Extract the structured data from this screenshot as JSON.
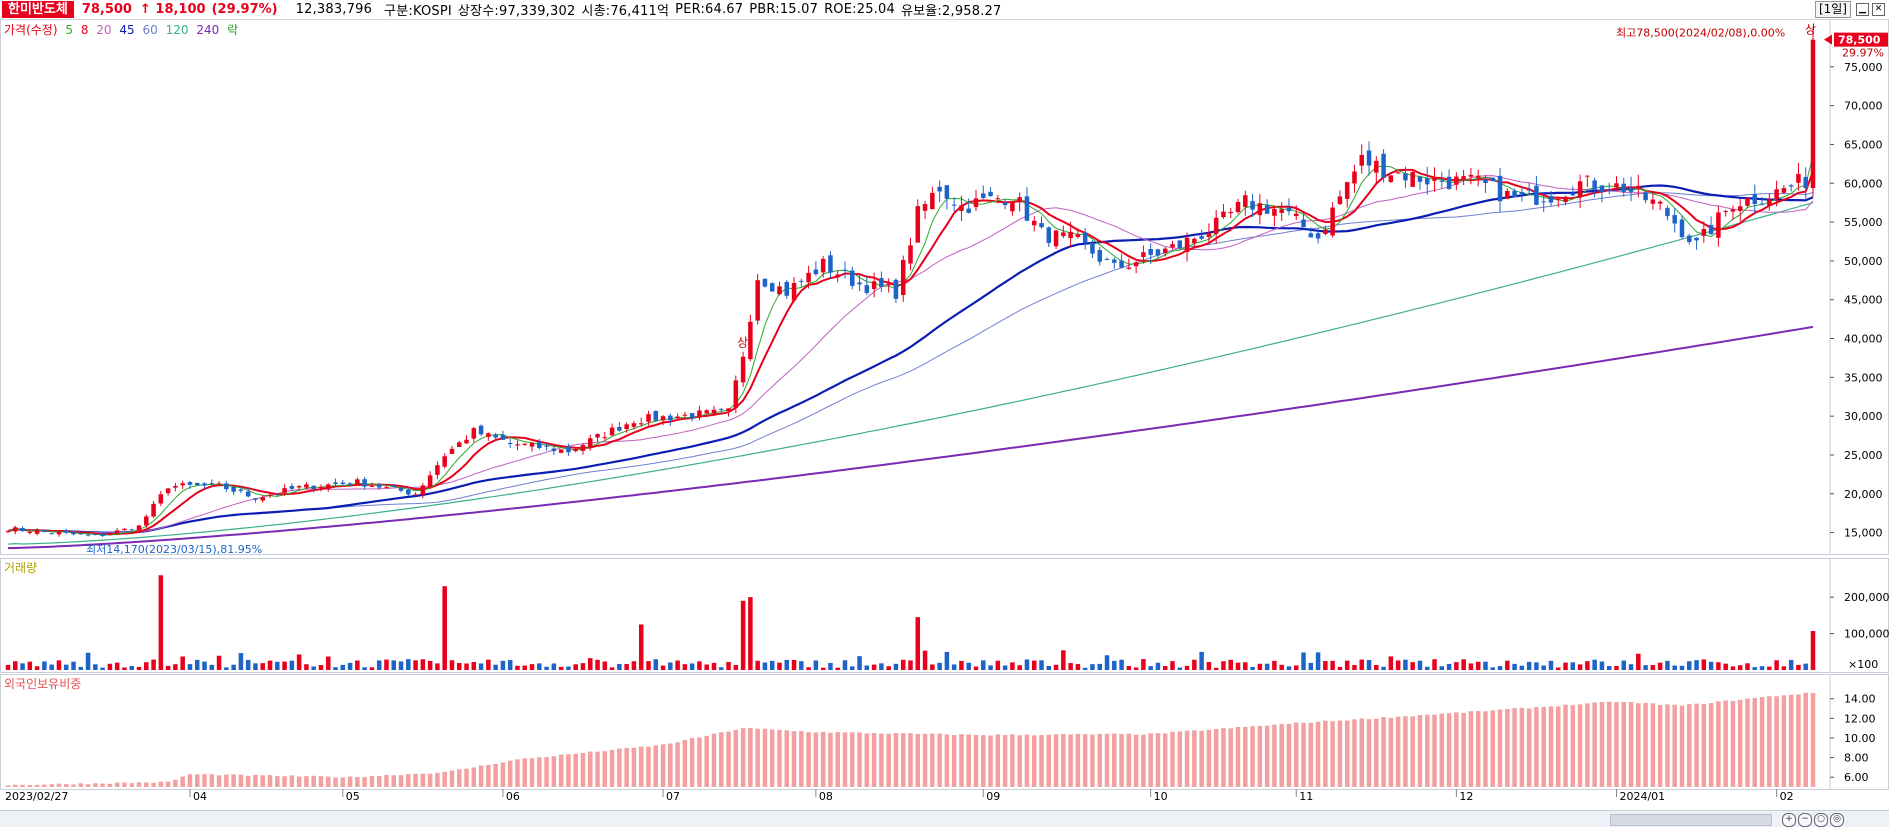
{
  "info": {
    "name": "한미반도체",
    "price": "78,500",
    "change": "↑ 18,100",
    "change_pct": "(29.97%)",
    "volume": "12,383,796",
    "market": "구분:KOSPI",
    "shares": "상장수:97,339,302",
    "market_cap": "시총:76,411억",
    "per": "PER:64.67",
    "pbr": "PBR:15.07",
    "roe": "ROE:25.04",
    "float": "유보율:2,958.27",
    "period": "[1일]"
  },
  "price_panel": {
    "legend_title": "가격(수정)",
    "ma_labels": [
      "5",
      "8",
      "20",
      "45",
      "60",
      "120",
      "240"
    ],
    "ma_colors": [
      "#2aa82a",
      "#e8001c",
      "#c060c0",
      "#0a1eb4",
      "#7080d0",
      "#3cb08c",
      "#7a2ab4"
    ],
    "legend_lock": "락",
    "high_label": "최고78,500(2024/02/08),0.00%",
    "limit_up_mark": "상",
    "low_label": "최저14,170(2023/03/15),81.95%",
    "current_price_tag": "78,500",
    "current_pct_tag": "29.97%"
  },
  "volume_panel": {
    "legend_title": "거래량",
    "unit_label": "×100"
  },
  "foreign_panel": {
    "legend_title": "외국인보유비중"
  },
  "x_axis_labels": [
    "2023/02/27",
    "04",
    "05",
    "06",
    "07",
    "08",
    "09",
    "10",
    "11",
    "12",
    "2024/01",
    "02"
  ],
  "colors": {
    "up": "#e8001c",
    "down": "#1e64c8",
    "foreign_bar": "#f4a0a0",
    "limit_up": "#e8001c"
  },
  "chart_data": [
    {
      "type": "candlestick",
      "title": "한미반도체",
      "ylim": [
        12500,
        80000
      ],
      "y_ticks": [
        15000,
        20000,
        25000,
        30000,
        35000,
        40000,
        45000,
        50000,
        55000,
        60000,
        65000,
        70000,
        75000
      ],
      "y_tick_labels": [
        "15,000",
        "20,000",
        "25,000",
        "30,000",
        "35,000",
        "40,000",
        "45,000",
        "50,000",
        "55,000",
        "60,000",
        "65,000",
        "70,000",
        "75,000"
      ],
      "x_period": [
        "2023/02/27",
        "2024/02/08"
      ],
      "close_anchors": [
        [
          "2023/02/27",
          15500
        ],
        [
          "2023/03/15",
          14500
        ],
        [
          "2023/03/23",
          15800
        ],
        [
          "2023/03/29",
          21000
        ],
        [
          "2023/04/07",
          21000
        ],
        [
          "2023/04/14",
          19500
        ],
        [
          "2023/04/24",
          20800
        ],
        [
          "2023/05/04",
          21500
        ],
        [
          "2023/05/16",
          20000
        ],
        [
          "2023/05/22",
          25000
        ],
        [
          "2023/05/26",
          28000
        ],
        [
          "2023/06/02",
          26500
        ],
        [
          "2023/06/14",
          25500
        ],
        [
          "2023/06/27",
          29500
        ],
        [
          "2023/07/05",
          30000
        ],
        [
          "2023/07/14",
          30500
        ],
        [
          "2023/07/18",
          38000
        ],
        [
          "2023/07/20",
          48000
        ],
        [
          "2023/07/26",
          46000
        ],
        [
          "2023/08/02",
          49500
        ],
        [
          "2023/08/09",
          47000
        ],
        [
          "2023/08/16",
          46000
        ],
        [
          "2023/08/21",
          56000
        ],
        [
          "2023/08/24",
          59500
        ],
        [
          "2023/08/29",
          57000
        ],
        [
          "2023/09/07",
          58500
        ],
        [
          "2023/09/13",
          53500
        ],
        [
          "2023/09/20",
          52500
        ],
        [
          "2023/09/27",
          49000
        ],
        [
          "2023/10/10",
          52000
        ],
        [
          "2023/10/17",
          54500
        ],
        [
          "2023/10/23",
          57500
        ],
        [
          "2023/10/30",
          56500
        ],
        [
          "2023/11/06",
          53000
        ],
        [
          "2023/11/10",
          60000
        ],
        [
          "2023/11/14",
          63000
        ],
        [
          "2023/11/20",
          61500
        ],
        [
          "2023/11/27",
          60500
        ],
        [
          "2023/12/06",
          60000
        ],
        [
          "2023/12/13",
          58000
        ],
        [
          "2023/12/20",
          58500
        ],
        [
          "2023/12/26",
          60000
        ],
        [
          "2024/01/03",
          59500
        ],
        [
          "2024/01/10",
          57000
        ],
        [
          "2024/01/17",
          52000
        ],
        [
          "2024/01/24",
          57500
        ],
        [
          "2024/01/31",
          58500
        ],
        [
          "2024/02/06",
          60000
        ],
        [
          "2024/02/07",
          60400
        ],
        [
          "2024/02/08",
          78500
        ]
      ],
      "close": 78500,
      "high": 78500,
      "low": 14170
    },
    {
      "type": "bar",
      "title": "거래량",
      "y_ticks": [
        100000,
        200000
      ],
      "y_tick_labels": [
        "100,000",
        "200,000"
      ],
      "ylim": [
        0,
        280000
      ],
      "spikes": [
        [
          "2023/03/28",
          260000
        ],
        [
          "2023/05/22",
          230000
        ],
        [
          "2023/06/28",
          125000
        ],
        [
          "2023/07/18",
          190000
        ],
        [
          "2023/07/19",
          200000
        ],
        [
          "2023/08/21",
          145000
        ],
        [
          "2024/02/08",
          107000
        ]
      ],
      "baseline": 15000
    },
    {
      "type": "bar",
      "title": "외국인보유비중",
      "y_ticks": [
        6,
        8,
        10,
        12,
        14
      ],
      "y_tick_labels": [
        "6.00",
        "8.00",
        "10.00",
        "12.00",
        "14.00"
      ],
      "ylim": [
        5,
        15.5
      ],
      "anchors": [
        [
          "2023/02/27",
          5.2
        ],
        [
          "2023/03/29",
          5.5
        ],
        [
          "2023/04/03",
          6.3
        ],
        [
          "2023/05/03",
          6.0
        ],
        [
          "2023/05/22",
          6.5
        ],
        [
          "2023/06/05",
          7.8
        ],
        [
          "2023/07/03",
          9.3
        ],
        [
          "2023/07/18",
          11.0
        ],
        [
          "2023/08/01",
          10.6
        ],
        [
          "2023/09/01",
          10.3
        ],
        [
          "2023/10/04",
          10.4
        ],
        [
          "2023/11/01",
          11.5
        ],
        [
          "2023/12/04",
          12.6
        ],
        [
          "2024/01/02",
          13.7
        ],
        [
          "2024/01/15",
          13.3
        ],
        [
          "2024/02/01",
          14.3
        ],
        [
          "2024/02/08",
          14.6
        ]
      ]
    }
  ]
}
